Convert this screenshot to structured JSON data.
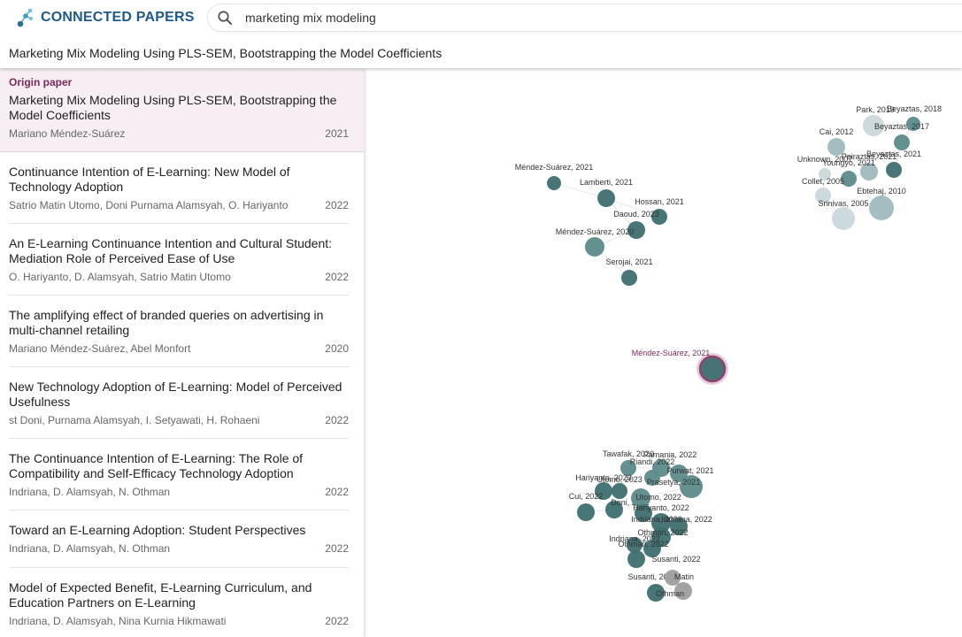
{
  "app": {
    "logo_text": "CONNECTED PAPERS"
  },
  "search": {
    "value": "marketing mix modeling"
  },
  "page_title": "Marketing Mix Modeling Using PLS-SEM, Bootstrapping the Model Coefficients",
  "origin": {
    "label": "Origin paper",
    "title": "Marketing Mix Modeling Using PLS-SEM, Bootstrapping the Model Coefficients",
    "authors": "Mariano Méndez-Suárez",
    "year": "2021"
  },
  "papers": [
    {
      "title": "Continuance Intention of E-Learning: New Model of Technology Adoption",
      "authors": "Satrio Matin Utomo, Doni Purnama Alamsyah, O. Hariyanto",
      "year": "2022"
    },
    {
      "title": "An E-Learning Continuance Intention and Cultural Student: Mediation Role of Perceived Ease of Use",
      "authors": "O. Hariyanto, D. Alamsyah, Satrio Matin Utomo",
      "year": "2022"
    },
    {
      "title": "The amplifying effect of branded queries on advertising in multi-channel retailing",
      "authors": "Mariano Méndez-Suárez, Abel Monfort",
      "year": "2020"
    },
    {
      "title": "New Technology Adoption of E-Learning: Model of Perceived Usefulness",
      "authors": "st Doni, Purnama Alamsyah, I. Setyawati, H. Rohaeni",
      "year": "2022"
    },
    {
      "title": "The Continuance Intention of E-Learning: The Role of Compatibility and Self-Efficacy Technology Adoption",
      "authors": "Indriana, D. Alamsyah, N. Othman",
      "year": "2022"
    },
    {
      "title": "Toward an E-Learning Adoption: Student Perspectives",
      "authors": "Indriana, D. Alamsyah, N. Othman",
      "year": "2022"
    },
    {
      "title": "Model of Expected Benefit, E-Learning Curriculum, and Education Partners on E-Learning",
      "authors": "Indriana, D. Alamsyah, Nina Kurnia Hikmawati",
      "year": "2022"
    }
  ],
  "graph": {
    "colors": {
      "dark": "#3e6f6f",
      "mid": "#5d8a8a",
      "light": "#9fb9bd",
      "pale": "#c6d6d9",
      "grey": "#9e9e9e",
      "origin_ring": "#8b3a6b"
    },
    "nodes": [
      {
        "label": "Méndez-Suárez, 2021",
        "tone": "dark",
        "origin": true
      },
      {
        "label": "Méndez-Suárez, 2021",
        "tone": "dark"
      },
      {
        "label": "Lamberti, 2021",
        "tone": "dark"
      },
      {
        "label": "Hossan, 2021",
        "tone": "dark"
      },
      {
        "label": "Daoud, 2023",
        "tone": "dark"
      },
      {
        "label": "Méndez-Suárez, 2020",
        "tone": "mid"
      },
      {
        "label": "Serojai, 2021",
        "tone": "dark"
      },
      {
        "label": "Park, 2019",
        "tone": "pale"
      },
      {
        "label": "Beyaztas, 2018",
        "tone": "mid"
      },
      {
        "label": "Beyaztas, 2017",
        "tone": "mid"
      },
      {
        "label": "Cai, 2012",
        "tone": "light"
      },
      {
        "label": "Beyaztas, 2021",
        "tone": "dark"
      },
      {
        "label": "Unknown, 2007",
        "tone": "pale"
      },
      {
        "label": "Peiraztas, 2021",
        "tone": "light"
      },
      {
        "label": "Youngyo, 2021",
        "tone": "mid"
      },
      {
        "label": "Collet, 2005",
        "tone": "pale"
      },
      {
        "label": "Ebtehaj, 2010",
        "tone": "light"
      },
      {
        "label": "Srinivas, 2005",
        "tone": "pale"
      },
      {
        "label": "Tawafak, 2020",
        "tone": "mid"
      },
      {
        "label": "Pamania, 2022",
        "tone": "mid"
      },
      {
        "label": "Riandi, 2022",
        "tone": "mid"
      },
      {
        "label": "Hariyanto, 2023",
        "tone": "dark"
      },
      {
        "label": "Utomo, 2023",
        "tone": "dark"
      },
      {
        "label": "Purwat, 2021",
        "tone": "mid"
      },
      {
        "label": "Prasetya, 2021",
        "tone": "mid"
      },
      {
        "label": "Cui, 2022",
        "tone": "dark"
      },
      {
        "label": "Doni, 2022",
        "tone": "dark"
      },
      {
        "label": "Utomo, 2022",
        "tone": "mid"
      },
      {
        "label": "Hariyanto, 2022",
        "tone": "dark"
      },
      {
        "label": "Indriana, 2022",
        "tone": "dark"
      },
      {
        "label": "Indriana, 2022",
        "tone": "dark"
      },
      {
        "label": "Othman, 2022",
        "tone": "dark"
      },
      {
        "label": "Indriana, 2022",
        "tone": "dark"
      },
      {
        "label": "Othman, 2022",
        "tone": "dark"
      },
      {
        "label": "Susanti, 2022",
        "tone": "dark"
      },
      {
        "label": "Susanti, 2022",
        "tone": "dark"
      },
      {
        "label": "Matin",
        "tone": "grey"
      },
      {
        "label": "Othman",
        "tone": "grey"
      }
    ]
  }
}
